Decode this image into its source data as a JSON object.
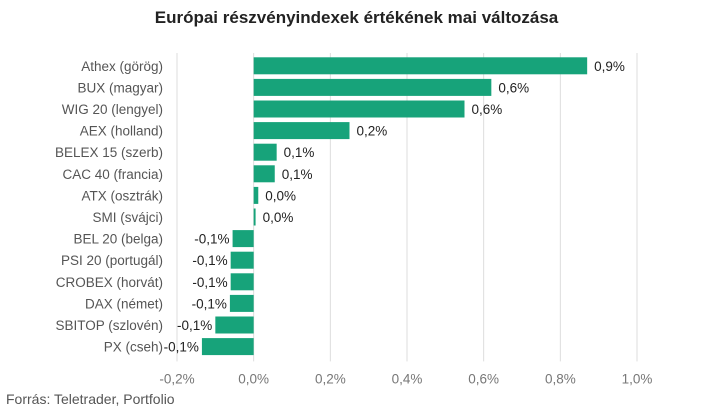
{
  "chart_data": {
    "type": "bar",
    "orientation": "horizontal",
    "title": "Európai részvényindexek értékének mai változása",
    "source": "Forrás: Teletrader, Portfolio",
    "categories": [
      "Athex (görög)",
      "BUX (magyar)",
      "WIG 20 (lengyel)",
      "AEX (holland)",
      "BELEX 15 (szerb)",
      "CAC 40 (francia)",
      "ATX (osztrák)",
      "SMI (svájci)",
      "BEL 20 (belga)",
      "PSI 20 (portugál)",
      "CROBEX (horvát)",
      "DAX (német)",
      "SBITOP (szlovén)",
      "PX (cseh)"
    ],
    "values": [
      0.87,
      0.62,
      0.55,
      0.25,
      0.06,
      0.055,
      0.012,
      0.005,
      -0.055,
      -0.06,
      -0.06,
      -0.062,
      -0.1,
      -0.135
    ],
    "value_labels": [
      "0,9%",
      "0,6%",
      "0,6%",
      "0,2%",
      "0,1%",
      "0,1%",
      "0,0%",
      "0,0%",
      "-0,1%",
      "-0,1%",
      "-0,1%",
      "-0,1%",
      "-0,1%",
      "-0,1%"
    ],
    "xticks": [
      -0.2,
      0,
      0.2,
      0.4,
      0.6,
      0.8,
      1.0
    ],
    "xtick_labels": [
      "-0,2%",
      "0,0%",
      "0,2%",
      "0,4%",
      "0,6%",
      "0,8%",
      "1,0%"
    ],
    "xlim": [
      -0.2,
      1.0
    ],
    "grid": true,
    "bar_color": "#17a37a",
    "grid_color": "#dddddd"
  }
}
